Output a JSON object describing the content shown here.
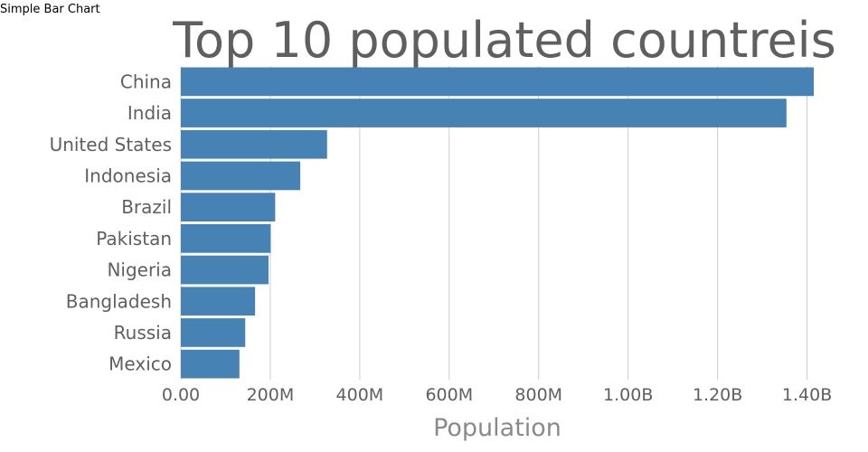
{
  "page": {
    "label": "Simple Bar Chart"
  },
  "chart_data": {
    "type": "bar",
    "orientation": "horizontal",
    "title": "Top 10 populated countreis",
    "xlabel": "Population",
    "ylabel": "",
    "categories": [
      "China",
      "India",
      "United States",
      "Indonesia",
      "Brazil",
      "Pakistan",
      "Nigeria",
      "Bangladesh",
      "Russia",
      "Mexico"
    ],
    "values": [
      1415000000,
      1354000000,
      327000000,
      267000000,
      211000000,
      201000000,
      196000000,
      166000000,
      144000000,
      131000000
    ],
    "xlim": [
      0,
      1415000000
    ],
    "x_ticks": [
      0,
      200000000,
      400000000,
      600000000,
      800000000,
      1000000000,
      1200000000,
      1400000000
    ],
    "x_tick_labels": [
      "0.00",
      "200M",
      "400M",
      "600M",
      "800M",
      "1.00B",
      "1.20B",
      "1.40B"
    ],
    "grid": "vertical",
    "legend": "none",
    "colors": {
      "bar": "#4682b4",
      "text": "#5f5f5f",
      "axis_title": "#8a8a8a",
      "grid": "#cccccc"
    }
  }
}
